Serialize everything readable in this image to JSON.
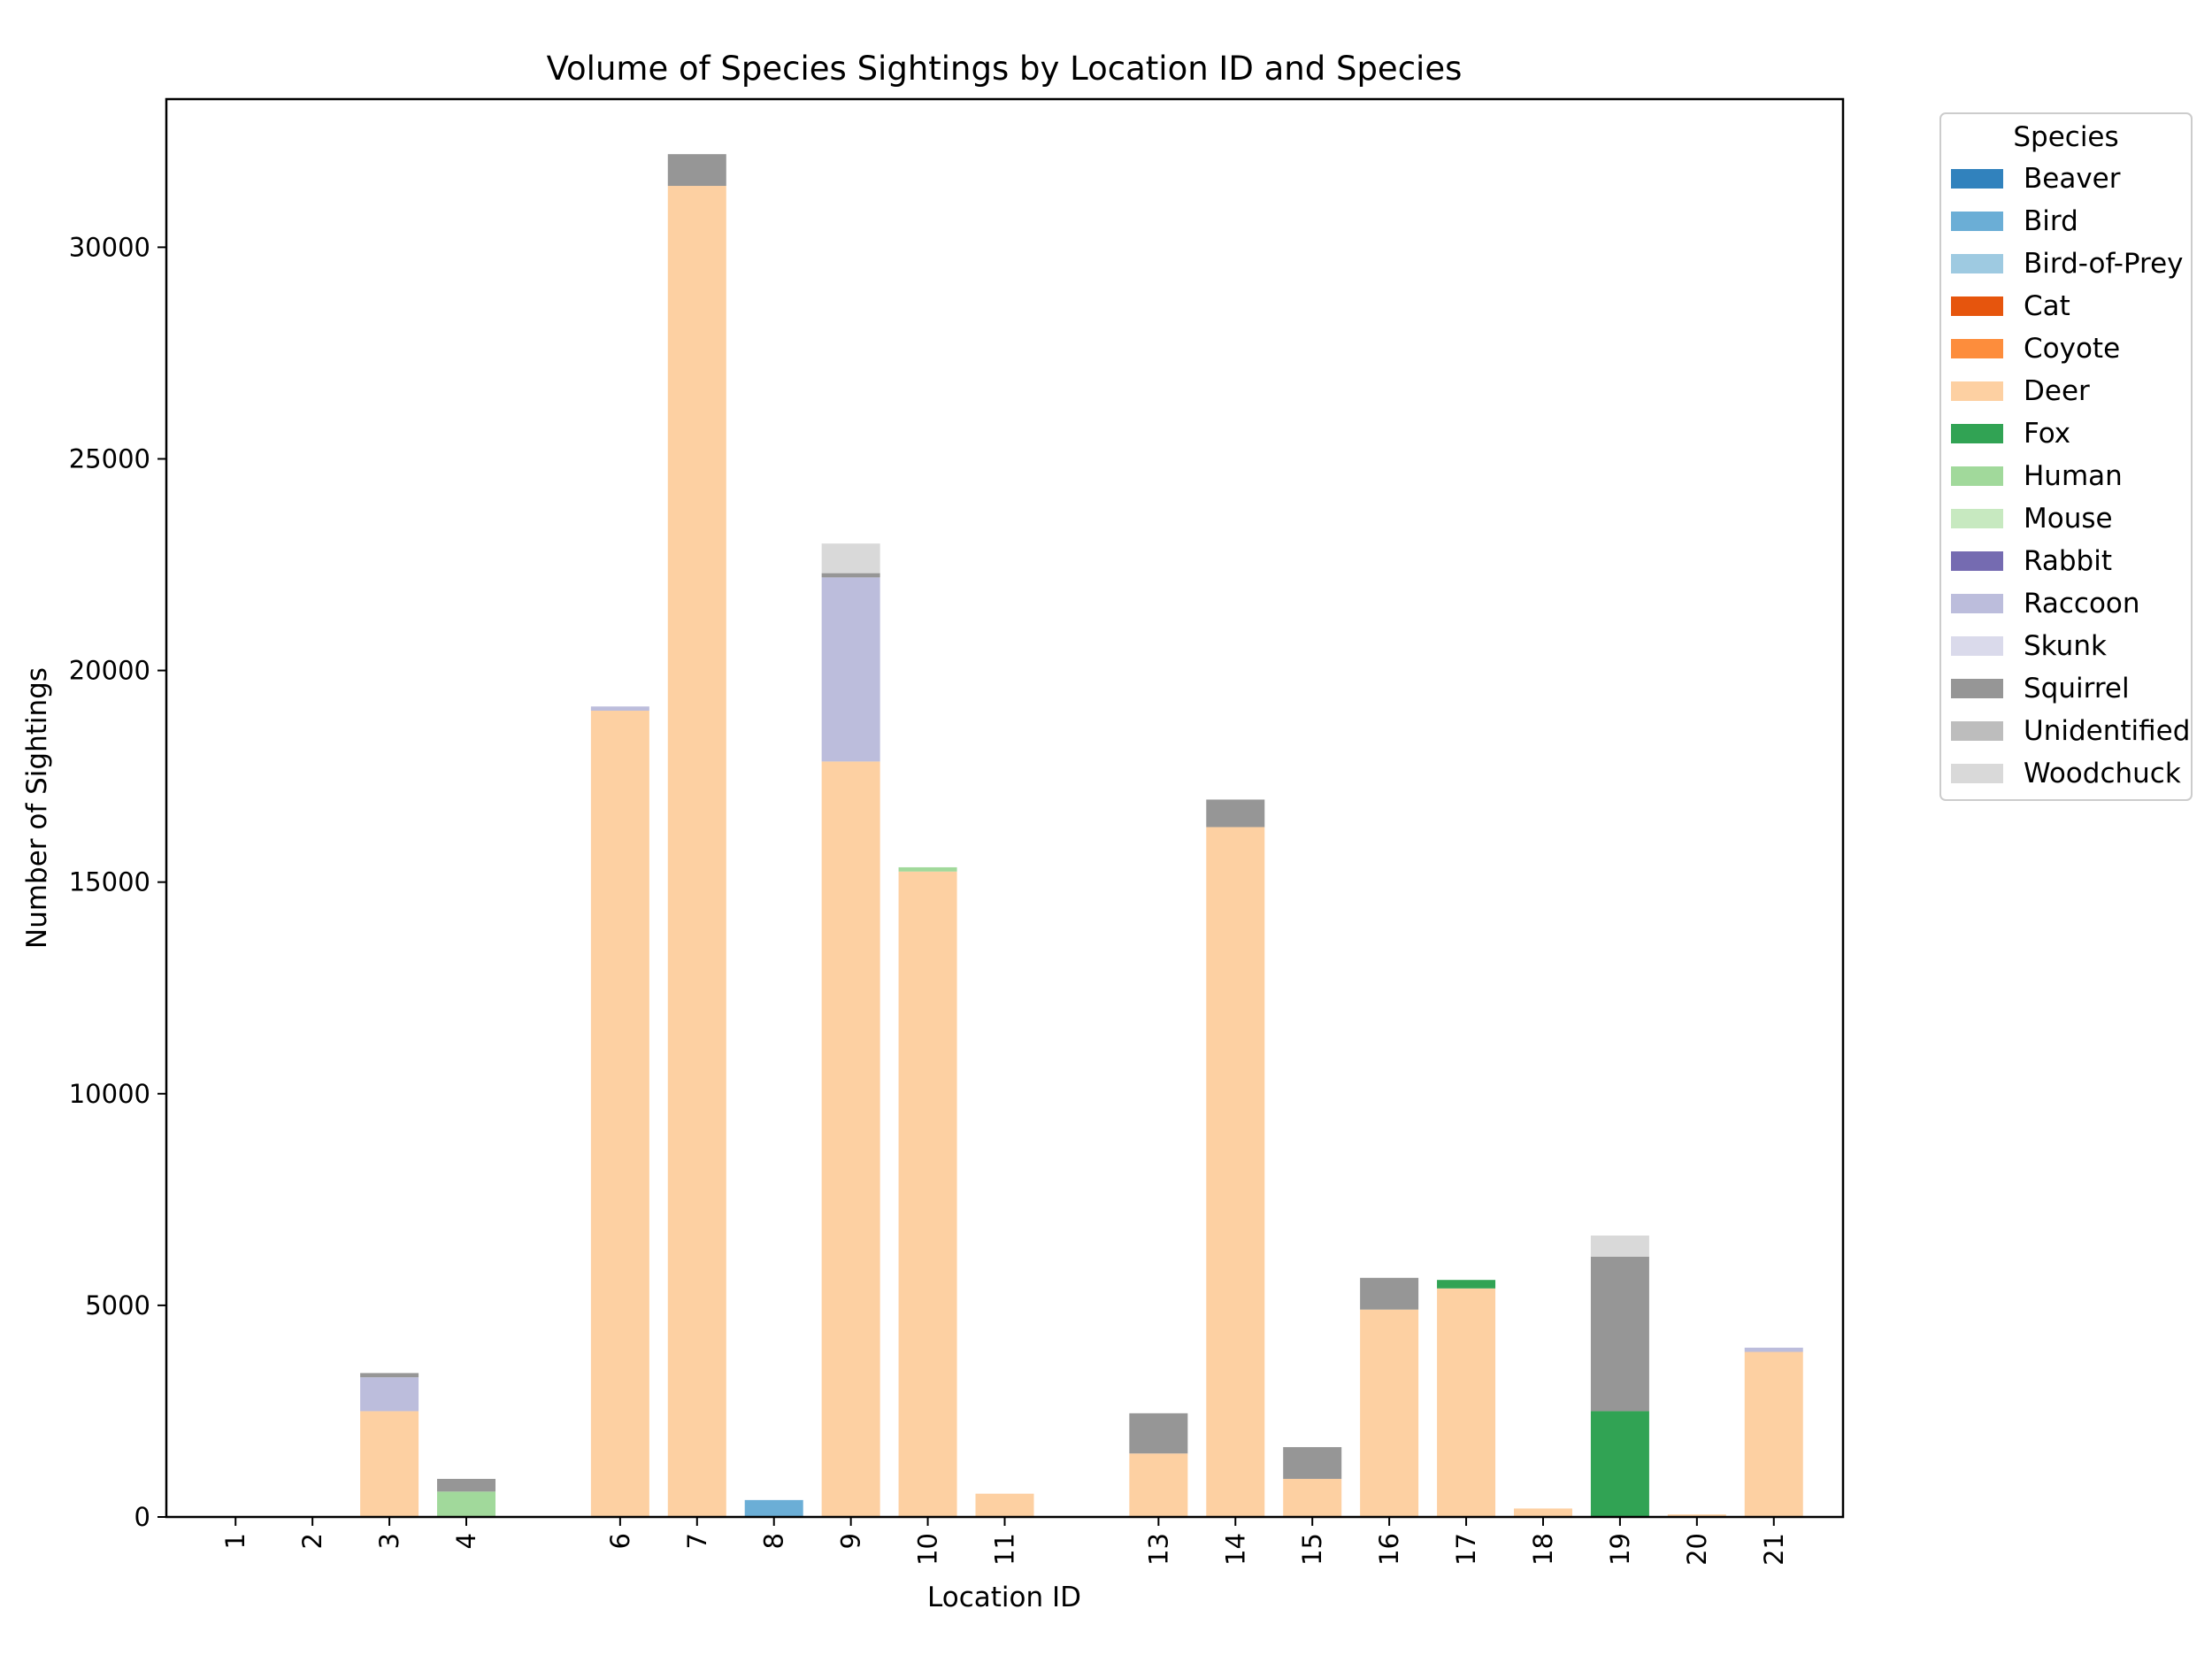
{
  "chart_data": {
    "type": "bar",
    "stacked": true,
    "title": "Volume of Species Sightings by Location ID and Species",
    "xlabel": "Location ID",
    "ylabel": "Number of Sightings",
    "ylim": [
      0,
      33500
    ],
    "yticks": [
      0,
      5000,
      10000,
      15000,
      20000,
      25000,
      30000
    ],
    "grid": false,
    "legend_title": "Species",
    "legend_position": "outside-top-right",
    "x": [
      1,
      2,
      3,
      4,
      6,
      7,
      8,
      9,
      10,
      11,
      13,
      14,
      15,
      16,
      17,
      18,
      19,
      20,
      21
    ],
    "categories": [
      "1",
      "2",
      "3",
      "4",
      "6",
      "7",
      "8",
      "9",
      "10",
      "11",
      "13",
      "14",
      "15",
      "16",
      "17",
      "18",
      "19",
      "20",
      "21"
    ],
    "series": [
      {
        "name": "Beaver",
        "color": "#3182bd",
        "values": [
          0,
          0,
          0,
          0,
          0,
          0,
          0,
          0,
          0,
          0,
          0,
          0,
          0,
          0,
          0,
          0,
          0,
          0,
          0
        ]
      },
      {
        "name": "Bird",
        "color": "#6baed6",
        "values": [
          0,
          0,
          0,
          0,
          0,
          0,
          400,
          0,
          0,
          0,
          0,
          0,
          0,
          0,
          0,
          0,
          0,
          0,
          0
        ]
      },
      {
        "name": "Bird-of-Prey",
        "color": "#9ecae1",
        "values": [
          0,
          0,
          0,
          0,
          0,
          0,
          0,
          0,
          0,
          0,
          0,
          0,
          0,
          0,
          0,
          0,
          0,
          0,
          0
        ]
      },
      {
        "name": "Cat",
        "color": "#e6550d",
        "values": [
          0,
          0,
          0,
          0,
          0,
          0,
          0,
          0,
          0,
          0,
          0,
          0,
          0,
          0,
          0,
          0,
          0,
          0,
          0
        ]
      },
      {
        "name": "Coyote",
        "color": "#fd8d3c",
        "values": [
          0,
          0,
          0,
          0,
          0,
          0,
          0,
          0,
          0,
          0,
          0,
          0,
          0,
          0,
          0,
          0,
          0,
          20,
          0
        ]
      },
      {
        "name": "Deer",
        "color": "#fdd0a2",
        "values": [
          0,
          0,
          2500,
          0,
          19050,
          31450,
          0,
          17850,
          15250,
          550,
          1500,
          16300,
          900,
          4900,
          5400,
          200,
          0,
          40,
          3900
        ]
      },
      {
        "name": "Fox",
        "color": "#31a354",
        "values": [
          0,
          0,
          0,
          0,
          0,
          0,
          0,
          0,
          0,
          0,
          0,
          0,
          0,
          0,
          200,
          0,
          2500,
          0,
          0
        ]
      },
      {
        "name": "Human",
        "color": "#a1d99b",
        "values": [
          0,
          0,
          0,
          600,
          0,
          0,
          0,
          0,
          100,
          0,
          0,
          0,
          0,
          0,
          0,
          0,
          0,
          0,
          0
        ]
      },
      {
        "name": "Mouse",
        "color": "#c7e9c0",
        "values": [
          0,
          0,
          0,
          0,
          0,
          0,
          0,
          0,
          0,
          0,
          0,
          0,
          0,
          0,
          0,
          0,
          0,
          0,
          0
        ]
      },
      {
        "name": "Rabbit",
        "color": "#756bb1",
        "values": [
          0,
          0,
          0,
          0,
          0,
          0,
          0,
          0,
          0,
          0,
          0,
          0,
          0,
          0,
          0,
          0,
          0,
          0,
          0
        ]
      },
      {
        "name": "Raccoon",
        "color": "#bcbddc",
        "values": [
          0,
          0,
          800,
          0,
          100,
          0,
          0,
          4350,
          0,
          0,
          0,
          0,
          0,
          0,
          0,
          0,
          0,
          0,
          100
        ]
      },
      {
        "name": "Skunk",
        "color": "#dadaeb",
        "values": [
          0,
          0,
          0,
          0,
          0,
          0,
          0,
          0,
          0,
          0,
          0,
          0,
          0,
          0,
          0,
          0,
          0,
          0,
          0
        ]
      },
      {
        "name": "Squirrel",
        "color": "#969696",
        "values": [
          0,
          0,
          100,
          300,
          0,
          750,
          0,
          100,
          0,
          0,
          950,
          650,
          750,
          750,
          0,
          0,
          3650,
          0,
          0
        ]
      },
      {
        "name": "Unidentified",
        "color": "#bdbdbd",
        "values": [
          0,
          0,
          0,
          0,
          0,
          0,
          0,
          0,
          0,
          0,
          0,
          0,
          0,
          0,
          0,
          0,
          0,
          0,
          0
        ]
      },
      {
        "name": "Woodchuck",
        "color": "#d9d9d9",
        "values": [
          0,
          0,
          0,
          0,
          0,
          0,
          0,
          700,
          0,
          0,
          0,
          0,
          0,
          0,
          0,
          0,
          500,
          0,
          0
        ]
      }
    ]
  }
}
